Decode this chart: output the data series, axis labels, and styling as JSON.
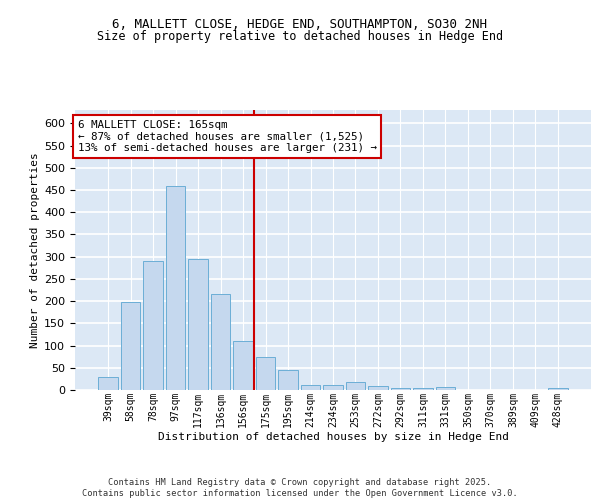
{
  "title_line1": "6, MALLETT CLOSE, HEDGE END, SOUTHAMPTON, SO30 2NH",
  "title_line2": "Size of property relative to detached houses in Hedge End",
  "xlabel": "Distribution of detached houses by size in Hedge End",
  "ylabel": "Number of detached properties",
  "categories": [
    "39sqm",
    "58sqm",
    "78sqm",
    "97sqm",
    "117sqm",
    "136sqm",
    "156sqm",
    "175sqm",
    "195sqm",
    "214sqm",
    "234sqm",
    "253sqm",
    "272sqm",
    "292sqm",
    "311sqm",
    "331sqm",
    "350sqm",
    "370sqm",
    "389sqm",
    "409sqm",
    "428sqm"
  ],
  "values": [
    30,
    197,
    290,
    460,
    295,
    215,
    110,
    75,
    45,
    12,
    12,
    18,
    10,
    5,
    5,
    6,
    0,
    0,
    0,
    0,
    5
  ],
  "bar_color": "#c5d8ee",
  "bar_edge_color": "#6baed6",
  "vline_color": "#cc0000",
  "annotation_text": "6 MALLETT CLOSE: 165sqm\n← 87% of detached houses are smaller (1,525)\n13% of semi-detached houses are larger (231) →",
  "annotation_box_facecolor": "#ffffff",
  "annotation_box_edgecolor": "#cc0000",
  "ylim": [
    0,
    630
  ],
  "yticks": [
    0,
    50,
    100,
    150,
    200,
    250,
    300,
    350,
    400,
    450,
    500,
    550,
    600
  ],
  "plot_bg_color": "#dce8f5",
  "grid_color": "#ffffff",
  "footer_text": "Contains HM Land Registry data © Crown copyright and database right 2025.\nContains public sector information licensed under the Open Government Licence v3.0."
}
